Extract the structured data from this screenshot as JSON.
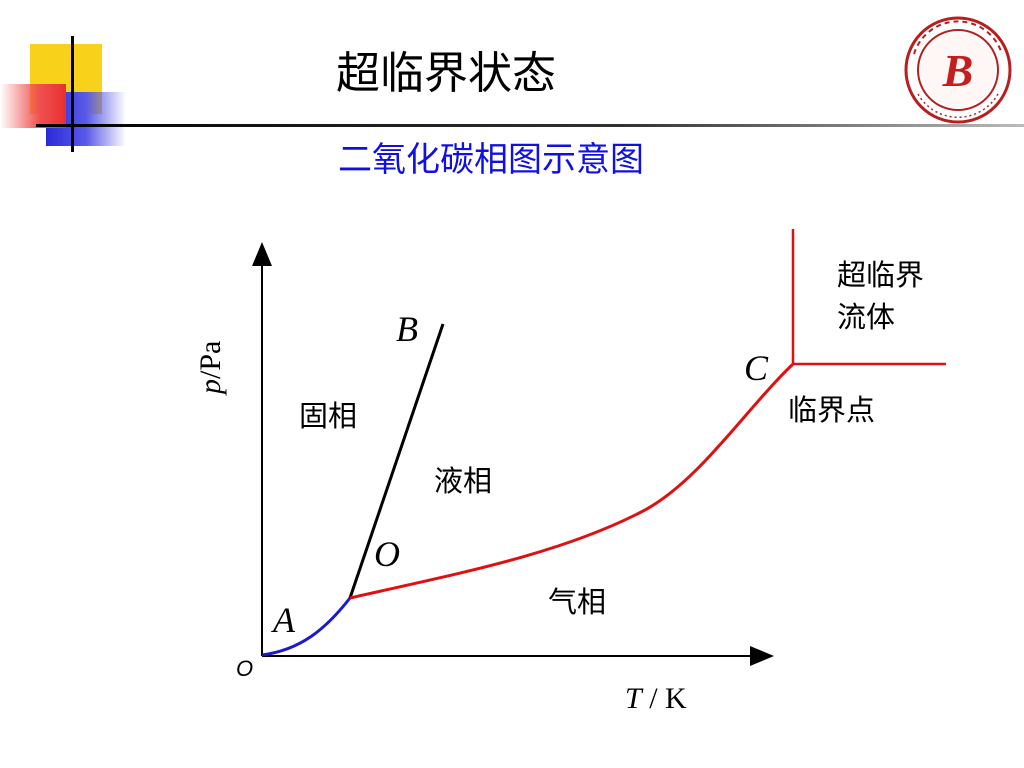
{
  "slide": {
    "title": "超临界状态",
    "subtitle": "二氧化碳相图示意图"
  },
  "diagram": {
    "region_labels": {
      "solid": "固相",
      "liquid": "液相",
      "gas": "气相",
      "supercritical_line1": "超临界",
      "supercritical_line2": "流体",
      "critical_point": "临界点"
    },
    "point_labels": {
      "A": "A",
      "B": "B",
      "C": "C",
      "O": "O"
    },
    "axes": {
      "y_label_var": "p",
      "y_label_unit": "/Pa",
      "x_label_var": "T",
      "x_label_unit": " / K",
      "origin": "O"
    },
    "colors": {
      "sublimation_curve": "#1a1acc",
      "melting_curve": "#000000",
      "vaporization_curve": "#dd1111",
      "supercritical_boundary": "#dd1111",
      "subtitle": "#1010e0"
    }
  },
  "logo": {
    "monogram": "B",
    "ring_text": "BAICHENG NORMAL COLLEGE"
  }
}
